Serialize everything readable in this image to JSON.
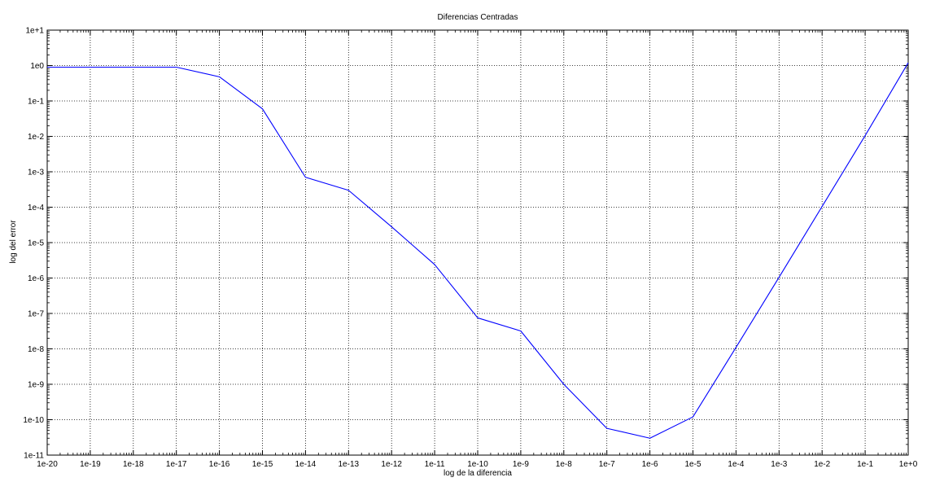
{
  "chart_data": {
    "type": "line",
    "title": "Diferencias Centradas",
    "xlabel": "log de la diferencia",
    "ylabel": "log del error",
    "x_scale": "log",
    "y_scale": "log",
    "xlim": [
      1e-20,
      1
    ],
    "ylim": [
      1e-11,
      10
    ],
    "grid": true,
    "grid_style": "dotted",
    "x_tick_labels": [
      "1e-20",
      "1e-19",
      "1e-18",
      "1e-17",
      "1e-16",
      "1e-15",
      "1e-14",
      "1e-13",
      "1e-12",
      "1e-11",
      "1e-10",
      "1e-9",
      "1e-8",
      "1e-7",
      "1e-6",
      "1e-5",
      "1e-4",
      "1e-3",
      "1e-2",
      "1e-1",
      "1e+0"
    ],
    "y_tick_labels": [
      "1e-11",
      "1e-10",
      "1e-9",
      "1e-8",
      "1e-7",
      "1e-6",
      "1e-5",
      "1e-4",
      "1e-3",
      "1e-2",
      "1e-1",
      "1e0",
      "1e+1"
    ],
    "series": [
      {
        "color": "#0000ff",
        "x": [
          1e-20,
          1e-19,
          1e-18,
          1e-17,
          1e-16,
          1e-15,
          1e-14,
          1e-13,
          1e-12,
          1e-11,
          1e-10,
          1e-09,
          1e-08,
          1e-07,
          1e-06,
          1e-05,
          0.0001,
          0.001,
          0.01,
          0.1,
          1
        ],
        "y": [
          0.9,
          0.9,
          0.9,
          0.9,
          0.48,
          0.06,
          0.0007,
          0.0003,
          2.8e-05,
          2.4e-06,
          7.5e-08,
          3.2e-08,
          1e-09,
          5.7e-11,
          3e-11,
          1.2e-10,
          1.1e-08,
          1.05e-06,
          0.000105,
          0.0105,
          1.2
        ]
      }
    ]
  }
}
